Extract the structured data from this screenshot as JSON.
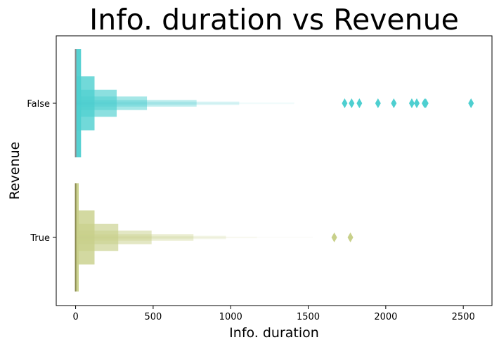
{
  "chart_data": {
    "type": "boxen",
    "title": "Info. duration vs Revenue",
    "xlabel": "Info. duration",
    "ylabel": "Revenue",
    "xlim": [
      -125,
      2685
    ],
    "xticks": [
      0,
      500,
      1000,
      1500,
      2000,
      2500
    ],
    "orientation": "horizontal",
    "grid": false,
    "series": [
      {
        "name": "False",
        "color": "#4ecfd0",
        "median": 0,
        "boxes": [
          {
            "low": 0,
            "high": 35
          },
          {
            "low": 0,
            "high": 122
          },
          {
            "low": 0,
            "high": 265
          },
          {
            "low": 0,
            "high": 460
          },
          {
            "low": 0,
            "high": 780
          },
          {
            "low": 0,
            "high": 1055
          },
          {
            "low": 0,
            "high": 1410
          }
        ],
        "outliers": [
          1735,
          1780,
          1830,
          1950,
          2052,
          2168,
          2200,
          2250,
          2258,
          2550
        ]
      },
      {
        "name": "True",
        "color": "#c8d08a",
        "median": 0,
        "boxes": [
          {
            "low": 0,
            "high": 20
          },
          {
            "low": 0,
            "high": 122
          },
          {
            "low": 0,
            "high": 275
          },
          {
            "low": 0,
            "high": 490
          },
          {
            "low": 0,
            "high": 760
          },
          {
            "low": 0,
            "high": 970
          },
          {
            "low": 0,
            "high": 1170
          },
          {
            "low": 0,
            "high": 1530
          }
        ],
        "outliers": [
          1668,
          1772
        ]
      }
    ]
  }
}
